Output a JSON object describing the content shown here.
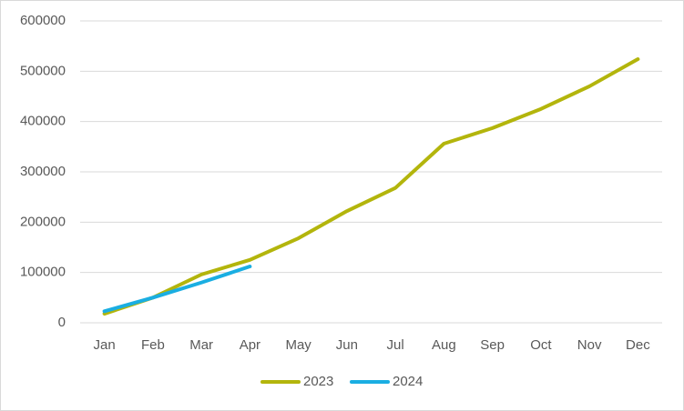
{
  "chart_data": {
    "type": "line",
    "categories": [
      "Jan",
      "Feb",
      "Mar",
      "Apr",
      "May",
      "Jun",
      "Jul",
      "Aug",
      "Sep",
      "Oct",
      "Nov",
      "Dec"
    ],
    "series": [
      {
        "name": "2023",
        "color": "#b3b50c",
        "values": [
          18000,
          50000,
          96000,
          125000,
          168000,
          222000,
          268000,
          356000,
          387000,
          425000,
          470000,
          524000
        ]
      },
      {
        "name": "2024",
        "color": "#1aaee2",
        "values": [
          23000,
          50000,
          80000,
          112000,
          null,
          null,
          null,
          null,
          null,
          null,
          null,
          null
        ]
      }
    ],
    "ylim": [
      0,
      600000
    ],
    "yticks": [
      0,
      100000,
      200000,
      300000,
      400000,
      500000,
      600000
    ],
    "grid": true,
    "legend": "bottom"
  }
}
